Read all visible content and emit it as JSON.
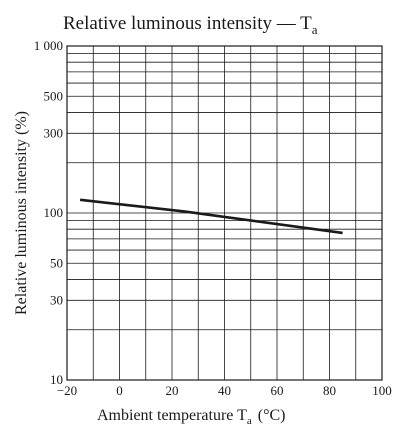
{
  "chart_data": {
    "type": "line",
    "title": "Relative luminous intensity — T",
    "title_subscript": "a",
    "xlabel": "Ambient temperature  T",
    "xlabel_subscript": "a",
    "xlabel_unit": "(°C)",
    "ylabel": "Relative luminous intensity  (%)",
    "xlim": [
      -20,
      100
    ],
    "ylim": [
      10,
      1000
    ],
    "y_scale": "log",
    "grid": true,
    "x_ticks": [
      -20,
      0,
      20,
      40,
      60,
      80,
      100
    ],
    "x_tick_labels": [
      "−20",
      "0",
      "20",
      "40",
      "60",
      "80",
      "100"
    ],
    "y_ticks": [
      10,
      30,
      50,
      100,
      300,
      500,
      1000
    ],
    "y_tick_labels": [
      "10",
      "30",
      "50",
      "100",
      "300",
      "500",
      "1 000"
    ],
    "x_minor_grid_step": 10,
    "y_minor_grid": [
      20,
      40,
      60,
      70,
      80,
      90,
      200,
      400,
      600,
      700,
      800,
      900
    ],
    "series": [
      {
        "x": [
          -15,
          25,
          85
        ],
        "y": [
          120,
          102,
          76
        ]
      }
    ]
  }
}
